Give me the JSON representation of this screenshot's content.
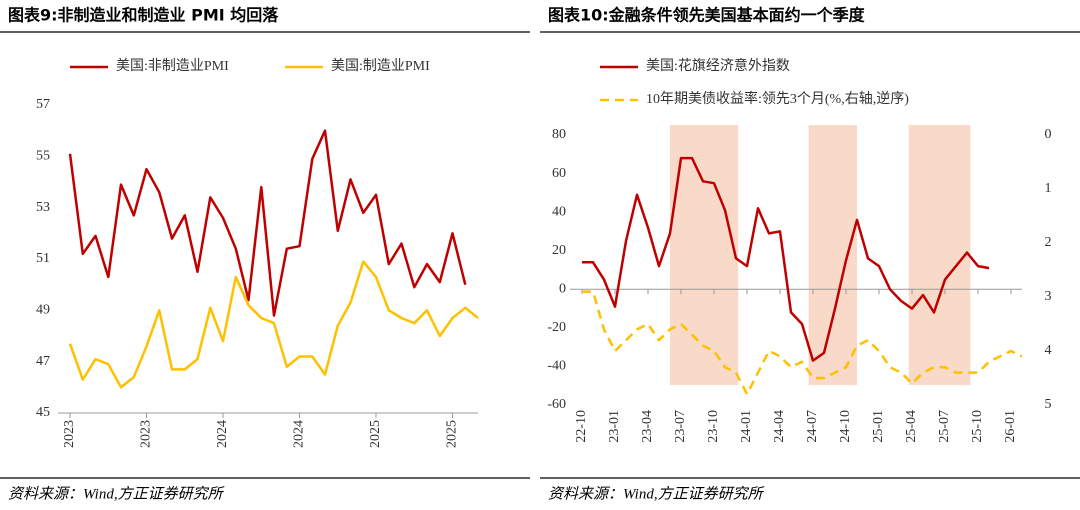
{
  "chart_data": [
    {
      "type": "line",
      "title": "图表9:非制造业和制造业 PMI 均回落",
      "source": "资料来源：Wind,方正证券研究所",
      "categories": [
        "2023",
        null,
        null,
        null,
        null,
        null,
        "2023",
        null,
        null,
        null,
        null,
        null,
        "2024",
        null,
        null,
        null,
        null,
        null,
        "2024",
        null,
        null,
        null,
        null,
        null,
        "2025",
        null,
        null,
        null,
        null,
        null,
        "2025",
        null,
        null
      ],
      "series": [
        {
          "name": "美国:非制造业PMI",
          "color": "#C00000",
          "values": [
            55.1,
            51.2,
            51.9,
            50.3,
            53.9,
            52.7,
            54.5,
            53.6,
            51.8,
            52.7,
            50.5,
            53.4,
            52.6,
            51.4,
            49.4,
            53.8,
            48.8,
            51.4,
            51.5,
            54.9,
            56.0,
            52.1,
            54.1,
            52.8,
            53.5,
            50.8,
            51.6,
            49.9,
            50.8,
            50.1,
            52.0,
            50.0,
            null
          ]
        },
        {
          "name": "美国:制造业PMI",
          "color": "#FFC000",
          "values": [
            47.7,
            46.3,
            47.1,
            46.9,
            46.0,
            46.4,
            47.6,
            49.0,
            46.7,
            46.7,
            47.1,
            49.1,
            47.8,
            50.3,
            49.2,
            48.7,
            48.5,
            46.8,
            47.2,
            47.2,
            46.5,
            48.4,
            49.3,
            50.9,
            50.3,
            49.0,
            48.7,
            48.5,
            49.0,
            48.0,
            48.7,
            49.1,
            48.7
          ]
        }
      ],
      "ylim": [
        45,
        57
      ],
      "yticks": [
        45,
        47,
        49,
        51,
        53,
        55,
        57
      ],
      "grid": false
    },
    {
      "type": "line",
      "title": "图表10:金融条件领先美国基本面约一个季度",
      "source": "资料来源：Wind,方正证券研究所",
      "categories": [
        "22-10",
        null,
        null,
        "23-01",
        null,
        null,
        "23-04",
        null,
        null,
        "23-07",
        null,
        null,
        "23-10",
        null,
        null,
        "24-01",
        null,
        null,
        "24-04",
        null,
        null,
        "24-07",
        null,
        null,
        "24-10",
        null,
        null,
        "25-01",
        null,
        null,
        "25-04",
        null,
        null,
        "25-07",
        null,
        null,
        "25-10",
        null,
        null,
        "26-01",
        null
      ],
      "series": [
        {
          "name": "美国:花旗经济意外指数",
          "color": "#C00000",
          "values": [
            14,
            14,
            5,
            -9,
            25,
            49,
            32,
            12,
            29,
            68,
            68,
            56,
            55,
            41,
            16,
            12,
            42,
            29,
            30,
            -12,
            -18,
            -37,
            -33,
            -10,
            15,
            36,
            16,
            12,
            0,
            -6,
            -10,
            -3,
            -12,
            5,
            12,
            19,
            12,
            11,
            null,
            null,
            null
          ]
        },
        {
          "name": "10年期美债收益率:领先3个月(%,右轴,逆序)",
          "color": "#FFC000",
          "dash": true,
          "axis": "y2",
          "values": [
            2.9,
            2.9,
            3.6,
            4.0,
            3.8,
            3.6,
            3.5,
            3.8,
            3.6,
            3.5,
            3.7,
            3.9,
            4.0,
            4.3,
            4.4,
            4.8,
            4.4,
            4.0,
            4.1,
            4.3,
            4.2,
            4.5,
            4.5,
            4.4,
            4.3,
            3.9,
            3.8,
            4.0,
            4.3,
            4.4,
            4.6,
            4.4,
            4.3,
            4.3,
            4.4,
            4.4,
            4.4,
            4.2,
            4.1,
            4.0,
            4.1
          ]
        }
      ],
      "highlight_spans": [
        [
          8,
          14.2
        ],
        [
          20.6,
          25
        ],
        [
          29.7,
          35.3
        ]
      ],
      "highlight_color": "#F8D3BE",
      "ylim": [
        -60,
        80
      ],
      "yticks": [
        -60,
        -40,
        -20,
        0,
        20,
        40,
        60,
        80
      ],
      "y2lim": [
        5,
        0
      ],
      "y2ticks": [
        0,
        1,
        2,
        3,
        4,
        5
      ],
      "grid": false
    }
  ]
}
